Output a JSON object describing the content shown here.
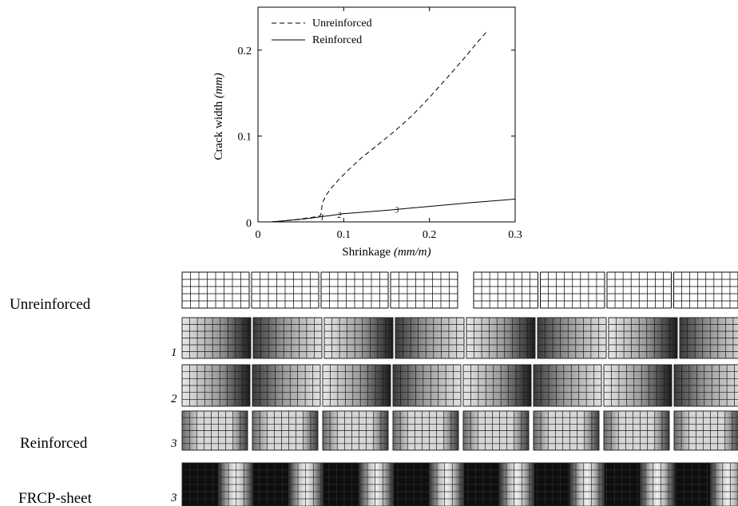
{
  "chart_data": {
    "type": "line",
    "xlabel_main": "Shrinkage",
    "xlabel_unit": "(mm/m)",
    "ylabel_main": "Crack width",
    "ylabel_unit": "(mm)",
    "xlim": [
      0,
      0.3
    ],
    "ylim": [
      0,
      0.25
    ],
    "grid": false,
    "legend_position": "top-left",
    "x_ticks": [
      {
        "value": 0,
        "label": "0"
      },
      {
        "value": 0.1,
        "label": "0.1"
      },
      {
        "value": 0.2,
        "label": "0.2"
      },
      {
        "value": 0.3,
        "label": "0.3"
      }
    ],
    "y_ticks": [
      {
        "value": 0,
        "label": "0"
      },
      {
        "value": 0.1,
        "label": "0.1"
      },
      {
        "value": 0.2,
        "label": "0.2"
      }
    ],
    "series": [
      {
        "name": "Unreinforced",
        "style": "dashed",
        "color": "#000000",
        "points": [
          [
            0.015,
            0.0
          ],
          [
            0.03,
            0.0012
          ],
          [
            0.045,
            0.0028
          ],
          [
            0.06,
            0.0048
          ],
          [
            0.07,
            0.0062
          ],
          [
            0.073,
            0.0075
          ],
          [
            0.074,
            0.012
          ],
          [
            0.0745,
            0.018
          ],
          [
            0.076,
            0.024
          ],
          [
            0.08,
            0.032
          ],
          [
            0.086,
            0.04
          ],
          [
            0.095,
            0.05
          ],
          [
            0.105,
            0.06
          ],
          [
            0.12,
            0.074
          ],
          [
            0.14,
            0.09
          ],
          [
            0.16,
            0.106
          ],
          [
            0.18,
            0.124
          ],
          [
            0.2,
            0.145
          ],
          [
            0.22,
            0.167
          ],
          [
            0.24,
            0.19
          ],
          [
            0.255,
            0.208
          ],
          [
            0.268,
            0.223
          ]
        ]
      },
      {
        "name": "Reinforced",
        "style": "solid",
        "color": "#000000",
        "points": [
          [
            0.015,
            0.0
          ],
          [
            0.03,
            0.0012
          ],
          [
            0.05,
            0.003
          ],
          [
            0.07,
            0.0055
          ],
          [
            0.1,
            0.0095
          ],
          [
            0.15,
            0.0135
          ],
          [
            0.2,
            0.018
          ],
          [
            0.25,
            0.0225
          ],
          [
            0.3,
            0.0265
          ]
        ]
      }
    ],
    "annotations": [
      {
        "label": "1",
        "x": 0.075,
        "y": 0.006
      },
      {
        "label": "2",
        "x": 0.095,
        "y": 0.0085
      },
      {
        "label": "3",
        "x": 0.162,
        "y": 0.0145
      }
    ]
  },
  "mesh_panels": {
    "row_labels": [
      "Unreinforced",
      "Reinforced",
      "FRCP-sheet"
    ],
    "stage_labels": [
      "1",
      "2",
      "3",
      "3"
    ]
  }
}
